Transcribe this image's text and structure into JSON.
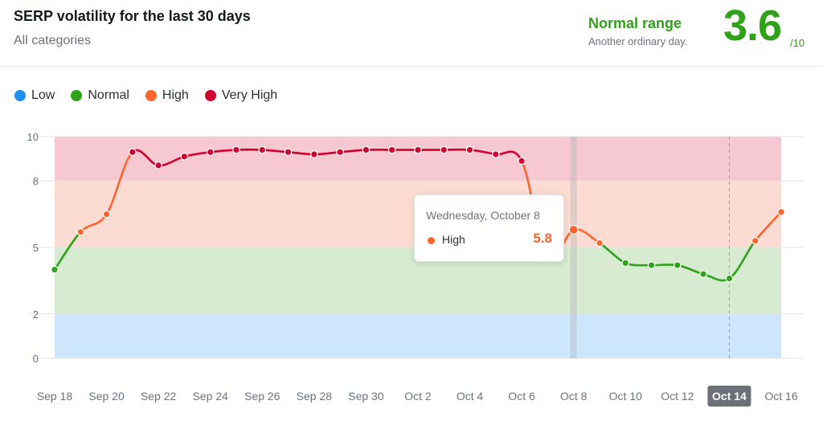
{
  "header": {
    "title": "SERP volatility for the last 30 days",
    "subtitle": "All categories",
    "range_label": "Normal range",
    "range_desc": "Another ordinary day.",
    "score": "3.6",
    "score_max": "/10"
  },
  "legend": [
    {
      "label": "Low",
      "color": "#1e90f0"
    },
    {
      "label": "Normal",
      "color": "#2ea218"
    },
    {
      "label": "High",
      "color": "#ff642d"
    },
    {
      "label": "Very High",
      "color": "#d1002f"
    }
  ],
  "tooltip": {
    "date": "Wednesday, October 8",
    "level": "High",
    "value": "5.8"
  },
  "chart_data": {
    "type": "line",
    "ylim": [
      0,
      10
    ],
    "y_ticks": [
      0,
      2,
      5,
      8,
      10
    ],
    "x_ticks": [
      "Sep 18",
      "Sep 20",
      "Sep 22",
      "Sep 24",
      "Sep 26",
      "Sep 28",
      "Sep 30",
      "Oct 2",
      "Oct 4",
      "Oct 6",
      "Oct 8",
      "Oct 10",
      "Oct 12",
      "Oct 14",
      "Oct 16"
    ],
    "highlighted_tick": "Oct 14",
    "bands": [
      {
        "level": "Low",
        "from": 0,
        "to": 2,
        "color": "#cde6fb"
      },
      {
        "level": "Normal",
        "from": 2,
        "to": 5,
        "color": "#d6ebd0"
      },
      {
        "level": "High",
        "from": 5,
        "to": 8,
        "color": "#fcdcd2"
      },
      {
        "level": "Very High",
        "from": 8,
        "to": 10,
        "color": "#f6c9d2"
      }
    ],
    "series": [
      {
        "x": [
          "Sep 18",
          "Sep 19",
          "Sep 20",
          "Sep 21",
          "Sep 22",
          "Sep 23",
          "Sep 24",
          "Sep 25",
          "Sep 26",
          "Sep 27",
          "Sep 28",
          "Sep 29",
          "Sep 30",
          "Oct 1",
          "Oct 2",
          "Oct 3",
          "Oct 4",
          "Oct 5",
          "Oct 6",
          "Oct 7",
          "Oct 8",
          "Oct 9",
          "Oct 10",
          "Oct 11",
          "Oct 12",
          "Oct 13",
          "Oct 14",
          "Oct 15",
          "Oct 16"
        ],
        "values": [
          4.0,
          5.7,
          6.5,
          9.3,
          8.7,
          9.1,
          9.3,
          9.4,
          9.4,
          9.3,
          9.2,
          9.3,
          9.4,
          9.4,
          9.4,
          9.4,
          9.4,
          9.2,
          8.9,
          4.5,
          5.8,
          5.2,
          4.3,
          4.2,
          4.2,
          3.8,
          3.6,
          5.3,
          6.6
        ]
      }
    ]
  }
}
